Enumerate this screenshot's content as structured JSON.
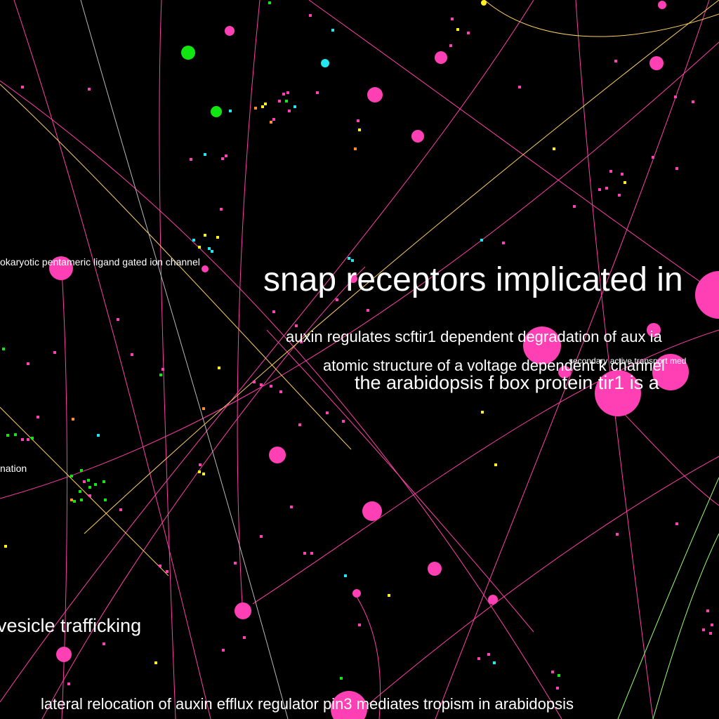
{
  "colors": {
    "background": "#000000",
    "edge_pink": "#ff3fa9",
    "edge_yellow": "#ffd060",
    "edge_green": "#9cff6a",
    "edge_gray": "#b8b8b8",
    "node_pink": "#ff3fb4",
    "node_green": "#11e611",
    "node_cyan": "#22e6f0",
    "node_yellow": "#ffee22",
    "node_orange": "#ff8c33",
    "label": "#ffffff"
  },
  "labels": {
    "snap": "snap receptors implicated in",
    "auxin_regulates": "auxin regulates scftir1 dependent degradation of aux ia",
    "atomic_structure": "atomic structure of a voltage dependent k channel",
    "secondary_active": "secondary active transport med",
    "arabidopsis_fbox": "the arabidopsis f box protein tir1 is a",
    "prokaryotic": "okaryotic pentameric ligand gated ion channel",
    "nation": "nation",
    "vesicle": "vesicle trafficking",
    "lateral_relocation": "lateral relocation of auxin efflux regulator pin3 mediates tropism in arabidopsis"
  }
}
